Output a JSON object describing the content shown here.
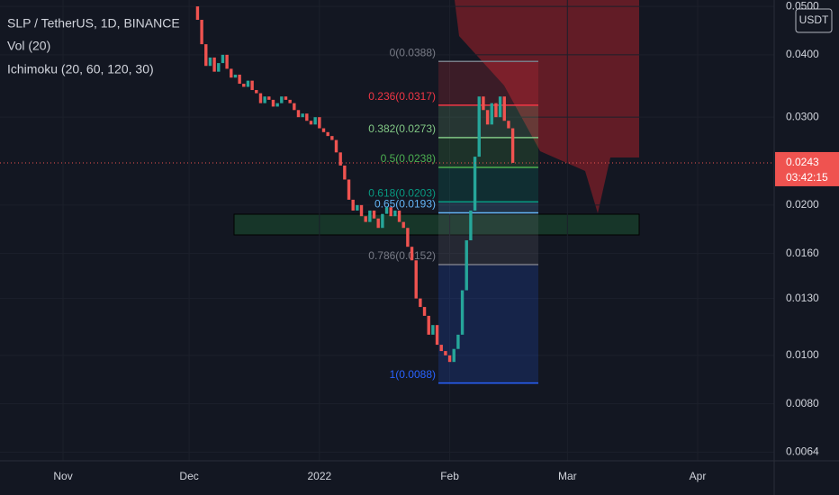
{
  "header": {
    "symbol": "SLP / TetherUS, 1D, BINANCE",
    "volume": "Vol (20)",
    "indicator": "Ichimoku (20, 60, 120, 30)"
  },
  "chart_data": {
    "type": "candlestick",
    "log_scale": true,
    "up_color": "#26a69a",
    "down_color": "#ef5350",
    "currency": "USDT",
    "x": [
      32,
      33,
      34,
      35,
      36,
      37,
      38,
      39,
      40,
      41,
      42,
      43,
      44,
      45,
      46,
      47,
      48,
      49,
      50,
      51,
      52,
      53,
      54,
      55,
      56,
      57,
      58,
      59,
      60,
      61,
      62,
      63,
      64,
      65,
      66,
      67,
      68,
      69,
      70,
      71,
      72,
      73,
      74,
      75,
      76,
      77,
      78,
      79,
      80,
      81,
      82,
      83,
      84,
      85,
      86,
      87,
      88,
      89,
      90,
      91,
      92,
      93,
      94,
      95,
      96,
      97,
      98,
      99,
      100,
      101,
      102,
      103,
      104,
      105,
      106,
      107
    ],
    "open": [
      0.05,
      0.047,
      0.042,
      0.038,
      0.0395,
      0.037,
      0.0385,
      0.04,
      0.0375,
      0.036,
      0.0365,
      0.035,
      0.0345,
      0.0355,
      0.034,
      0.0335,
      0.032,
      0.033,
      0.0325,
      0.0315,
      0.032,
      0.033,
      0.0325,
      0.032,
      0.031,
      0.03,
      0.0305,
      0.0295,
      0.029,
      0.03,
      0.0285,
      0.028,
      0.0275,
      0.027,
      0.0255,
      0.024,
      0.0225,
      0.0205,
      0.0195,
      0.02,
      0.019,
      0.0185,
      0.0195,
      0.0188,
      0.018,
      0.0192,
      0.0198,
      0.019,
      0.0195,
      0.0185,
      0.018,
      0.0165,
      0.0155,
      0.013,
      0.0125,
      0.012,
      0.011,
      0.0115,
      0.0105,
      0.0102,
      0.01,
      0.0097,
      0.0103,
      0.011,
      0.0135,
      0.017,
      0.0195,
      0.025,
      0.033,
      0.031,
      0.029,
      0.032,
      0.03,
      0.033,
      0.0295,
      0.0285
    ],
    "close": [
      0.047,
      0.042,
      0.038,
      0.0395,
      0.037,
      0.0385,
      0.04,
      0.0375,
      0.036,
      0.0365,
      0.035,
      0.0345,
      0.0355,
      0.034,
      0.0335,
      0.032,
      0.033,
      0.0325,
      0.0315,
      0.032,
      0.033,
      0.0325,
      0.032,
      0.031,
      0.03,
      0.0305,
      0.0295,
      0.029,
      0.03,
      0.0285,
      0.028,
      0.0275,
      0.027,
      0.0255,
      0.024,
      0.0225,
      0.0205,
      0.0195,
      0.02,
      0.019,
      0.0185,
      0.0195,
      0.0188,
      0.018,
      0.0192,
      0.0198,
      0.019,
      0.0195,
      0.0185,
      0.018,
      0.0165,
      0.0155,
      0.013,
      0.0125,
      0.012,
      0.011,
      0.0115,
      0.0105,
      0.0102,
      0.01,
      0.0097,
      0.0103,
      0.011,
      0.0135,
      0.017,
      0.0195,
      0.025,
      0.033,
      0.031,
      0.029,
      0.032,
      0.03,
      0.033,
      0.0295,
      0.0285,
      0.0243
    ],
    "xlim": [
      -15,
      169.2
    ],
    "xticks": [
      {
        "value": 0,
        "label": "Nov"
      },
      {
        "value": 30,
        "label": "Dec"
      },
      {
        "value": 61,
        "label": "2022"
      },
      {
        "value": 92,
        "label": "Feb"
      },
      {
        "value": 120,
        "label": "Mar"
      },
      {
        "value": 151,
        "label": "Apr"
      }
    ],
    "ylim": [
      0.0062,
      0.0515
    ],
    "yticks": [
      {
        "value": 0.05,
        "label": "0.0500"
      },
      {
        "value": 0.04,
        "label": "0.0400"
      },
      {
        "value": 0.03,
        "label": "0.0300"
      },
      {
        "value": 0.02,
        "label": "0.0200"
      },
      {
        "value": 0.016,
        "label": "0.0160"
      },
      {
        "value": 0.013,
        "label": "0.0130"
      },
      {
        "value": 0.01,
        "label": "0.0100"
      },
      {
        "value": 0.008,
        "label": "0.0080"
      },
      {
        "value": 0.0064,
        "label": "0.0064"
      }
    ],
    "last_price": 0.0243,
    "countdown": "03:42:15",
    "fib": [
      {
        "price": 0.0388,
        "label": "0(0.0388)",
        "color": "#787b86"
      },
      {
        "price": 0.0317,
        "label": "0.236(0.0317)",
        "color": "#f23645"
      },
      {
        "price": 0.0273,
        "label": "0.382(0.0273)",
        "color": "#81c784"
      },
      {
        "price": 0.0238,
        "label": "0.5(0.0238)",
        "color": "#4caf50"
      },
      {
        "price": 0.0203,
        "label": "0.618(0.0203)",
        "color": "#089981"
      },
      {
        "price": 0.0193,
        "label": "0.65(0.0193)",
        "color": "#64b5f6"
      },
      {
        "price": 0.0152,
        "label": "0.786(0.0152)",
        "color": "#787b86"
      },
      {
        "price": 0.0088,
        "label": "1(0.0088)",
        "color": "#2962ff"
      }
    ]
  }
}
